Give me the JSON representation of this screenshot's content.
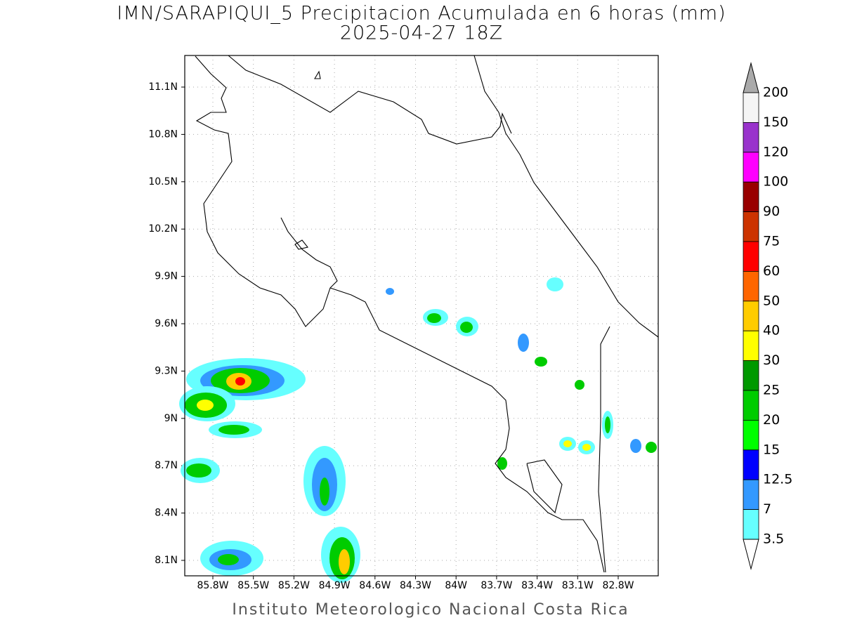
{
  "title": "IMN/SARAPIQUI_5 Precipitacion Acumulada en 6 horas (mm)",
  "subtitle": "2025-04-27 18Z",
  "map": {
    "lat_labels": [
      "11.1N",
      "10.8N",
      "10.5N",
      "10.2N",
      "9.9N",
      "9.6N",
      "9.3N",
      "9N",
      "8.7N",
      "8.4N",
      "8.1N"
    ],
    "lon_labels": [
      "85.8W",
      "85.5W",
      "85.2W",
      "84.9W",
      "84.6W",
      "84.3W",
      "84W",
      "83.7W",
      "83.4W",
      "83.1W",
      "82.8W"
    ]
  },
  "colorbar": {
    "levels": [
      200,
      150,
      120,
      100,
      90,
      75,
      60,
      50,
      40,
      30,
      25,
      20,
      15,
      12.5,
      7,
      3.5
    ],
    "colors": [
      "#f5f5f5",
      "#9933cc",
      "#ff00ff",
      "#990000",
      "#cc3300",
      "#ff0000",
      "#ff6600",
      "#ffcc00",
      "#ffff00",
      "#009900",
      "#00cc00",
      "#00ff00",
      "#0000ff",
      "#3399ff",
      "#66ffff"
    ],
    "over_color": "#aaaaaa",
    "under_color": "#ffffff"
  },
  "footer": "Instituto Meteorologico Nacional Costa Rica"
}
